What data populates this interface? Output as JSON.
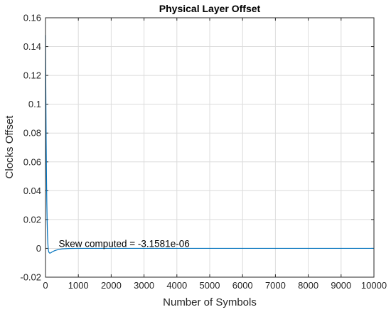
{
  "chart_data": {
    "type": "line",
    "title": "Physical Layer Offset",
    "xlabel": "Number of Symbols",
    "ylabel": "Clocks Offset",
    "xlim": [
      0,
      10000
    ],
    "ylim": [
      -0.02,
      0.16
    ],
    "xticks": [
      0,
      1000,
      2000,
      3000,
      4000,
      5000,
      6000,
      7000,
      8000,
      9000,
      10000
    ],
    "yticks": [
      -0.02,
      0,
      0.02,
      0.04,
      0.06,
      0.08,
      0.1,
      0.12,
      0.14,
      0.16
    ],
    "xtick_labels": [
      "0",
      "1000",
      "2000",
      "3000",
      "4000",
      "5000",
      "6000",
      "7000",
      "8000",
      "9000",
      "10000"
    ],
    "ytick_labels": [
      "-0.02",
      "0",
      "0.02",
      "0.04",
      "0.06",
      "0.08",
      "0.1",
      "0.12",
      "0.14",
      "0.16"
    ],
    "grid": true,
    "series": [
      {
        "color": "#0072bd",
        "x": [
          0,
          10,
          20,
          30,
          40,
          50,
          60,
          70,
          80,
          90,
          100,
          120,
          140,
          160,
          180,
          200,
          250,
          300,
          400,
          500,
          600,
          700,
          800,
          1000,
          1200,
          1500,
          2000,
          3000,
          4000,
          5000,
          6000,
          7000,
          8000,
          9000,
          10000
        ],
        "y": [
          0.148,
          0.11,
          0.075,
          0.05,
          0.032,
          0.019,
          0.01,
          0.004,
          0.0005,
          -0.0015,
          -0.0025,
          -0.0032,
          -0.0033,
          -0.0031,
          -0.0028,
          -0.0025,
          -0.0019,
          -0.0014,
          -0.0008,
          -0.0004,
          -0.0002,
          -0.0001,
          -5e-05,
          0,
          0,
          0,
          0,
          0,
          0,
          0,
          0,
          0,
          0,
          0,
          0
        ]
      }
    ],
    "annotation": {
      "text": "Skew computed = -3.1581e-06",
      "x": 400,
      "y": 0.001
    }
  }
}
